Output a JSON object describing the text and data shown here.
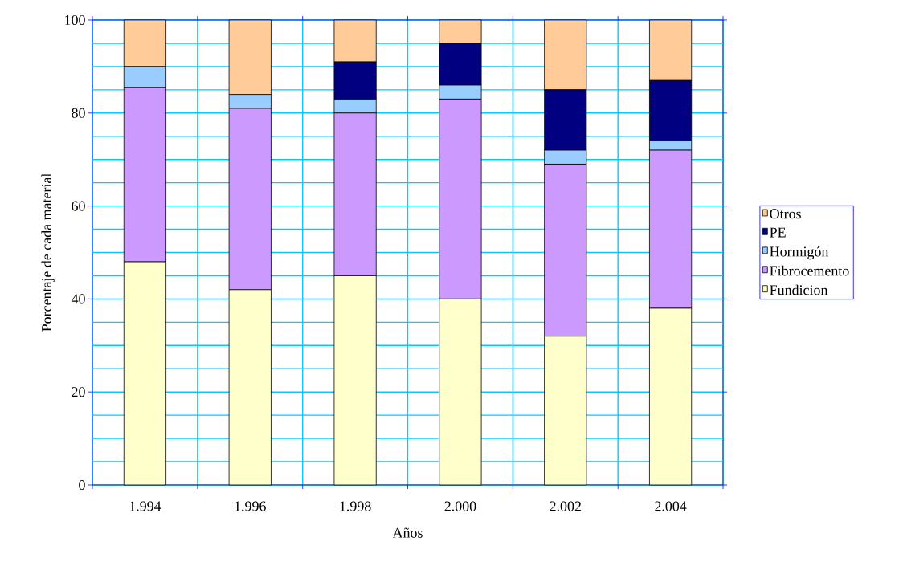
{
  "chart_data": {
    "type": "bar",
    "stacked": true,
    "xlabel": "Años",
    "ylabel": "Porcentaje de cada material",
    "categories": [
      "1.994",
      "1.996",
      "1.998",
      "2.000",
      "2.002",
      "2.004"
    ],
    "series": [
      {
        "name": "Fundicion",
        "color": "#ffffcc",
        "values": [
          48,
          42,
          45,
          40,
          32,
          38
        ]
      },
      {
        "name": "Fibrocemento",
        "color": "#cc99ff",
        "values": [
          37.5,
          39,
          35,
          43,
          37,
          34
        ]
      },
      {
        "name": "Hormigón",
        "color": "#99ccff",
        "values": [
          4.5,
          3,
          3,
          3,
          3,
          2
        ]
      },
      {
        "name": "PE",
        "color": "#000080",
        "values": [
          0,
          0,
          8,
          9,
          13,
          13
        ]
      },
      {
        "name": "Otros",
        "color": "#ffcc99",
        "values": [
          10,
          16,
          9,
          5,
          15,
          13
        ]
      }
    ],
    "ylim": [
      0,
      100
    ],
    "yticks": [
      0,
      {
        "value": 5,
        "label": null
      },
      {
        "value": 10,
        "label": null
      },
      {
        "value": 15,
        "label": null
      },
      20,
      {
        "value": 25,
        "label": null
      },
      {
        "value": 30,
        "label": null
      },
      {
        "value": 35,
        "label": null
      },
      40,
      {
        "value": 45,
        "label": null
      },
      {
        "value": 50,
        "label": null
      },
      {
        "value": 55,
        "label": null
      },
      60,
      {
        "value": 65,
        "label": null
      },
      {
        "value": 70,
        "label": null
      },
      {
        "value": 75,
        "label": null
      },
      80,
      {
        "value": 85,
        "label": null
      },
      {
        "value": 90,
        "label": null
      },
      {
        "value": 95,
        "label": null
      },
      100
    ],
    "grid": true,
    "legend": "right"
  }
}
